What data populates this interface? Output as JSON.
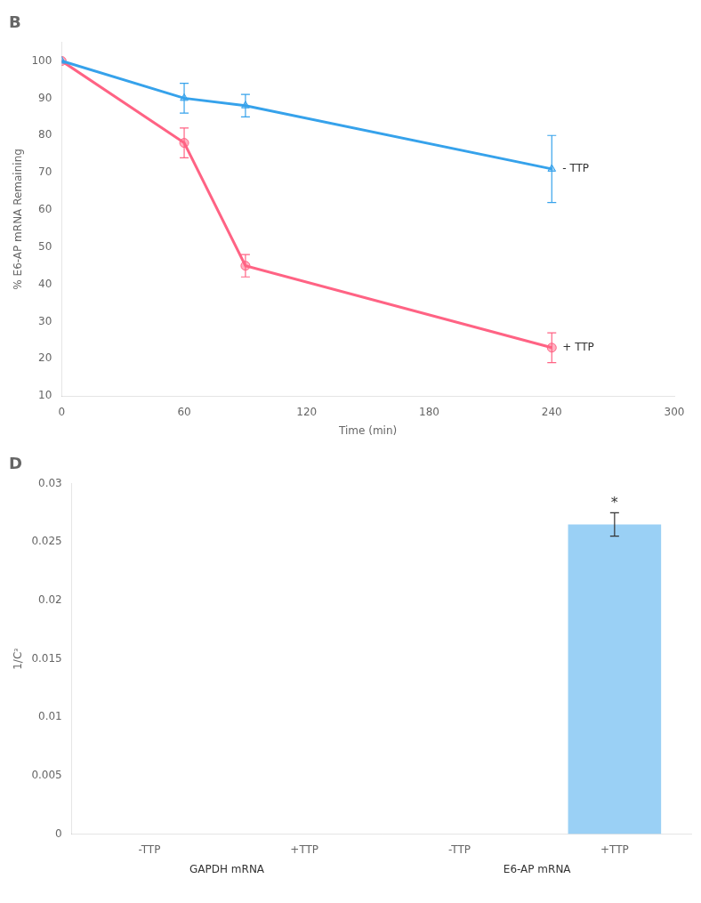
{
  "chart_data": [
    {
      "type": "line",
      "title": "B",
      "xlabel": "Time (min)",
      "ylabel": "% E6-AP mRNA Remaining",
      "x": [
        0,
        60,
        90,
        240
      ],
      "series": [
        {
          "name": "- TTP",
          "marker": "triangle",
          "line_style": "solid",
          "values": [
            100,
            90,
            88,
            71
          ],
          "errors": [
            0,
            4,
            3,
            9
          ]
        },
        {
          "name": "+ TTP",
          "marker": "circle",
          "line_style": "solid",
          "values": [
            100,
            78,
            45,
            23
          ],
          "errors": [
            0,
            4,
            3,
            4
          ]
        }
      ],
      "xlim": [
        0,
        300
      ],
      "xticks": [
        0,
        60,
        120,
        180,
        240,
        300
      ],
      "ylim": [
        10,
        105
      ],
      "yticks": [
        10,
        20,
        30,
        40,
        50,
        60,
        70,
        80,
        90,
        100
      ],
      "grid": false
    },
    {
      "type": "bar",
      "title": "D",
      "ylabel": "1/Cᵌ",
      "categories": [
        "-TTP",
        "+TTP",
        "-TTP",
        "+TTP"
      ],
      "groups": [
        {
          "label": "GAPDH mRNA",
          "size": 2
        },
        {
          "label": "E6-AP mRNA",
          "size": 2
        }
      ],
      "values": [
        0.0,
        0.0,
        0.0,
        0.0265
      ],
      "errors": [
        0.0,
        0.0,
        0.0,
        0.001
      ],
      "annotations": [
        {
          "text": "*",
          "index": 3
        }
      ],
      "ylim": [
        0,
        0.03
      ],
      "yticks": [
        0,
        0.005,
        0.01,
        0.015,
        0.02,
        0.025,
        0.03
      ],
      "grid": false
    }
  ]
}
